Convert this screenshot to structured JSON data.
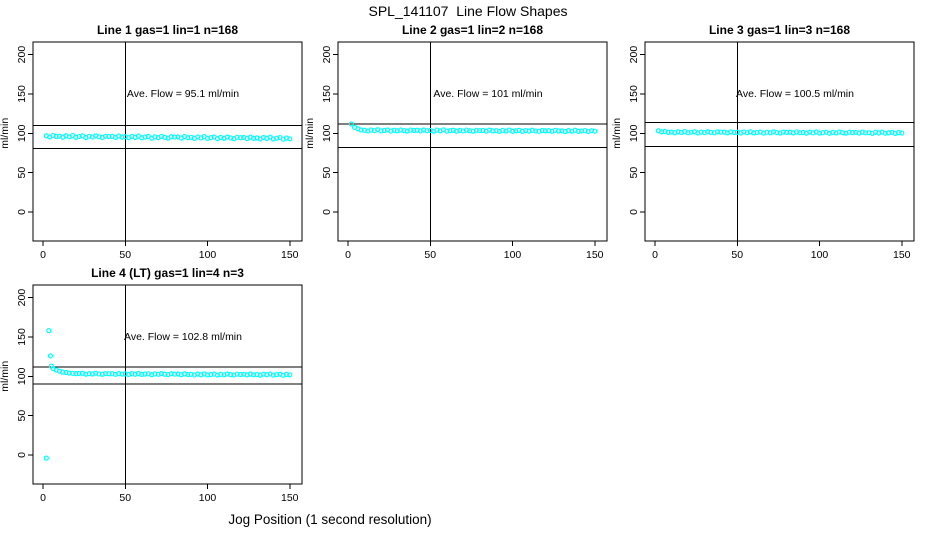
{
  "figure": {
    "title": "SPL_141107  Line Flow Shapes",
    "xlabel": "Jog Position (1 second resolution)",
    "background": "#ffffff",
    "point_color": "#00ffff",
    "axis_color": "#000000"
  },
  "chart_data": [
    {
      "type": "scatter",
      "title": "Line 1 gas=1 lin=1 n=168",
      "annotation": "Ave. Flow =  95.1  ml/min",
      "ave_flow": 95.1,
      "n": 168,
      "ylabel": "ml/min",
      "xticks": [
        0,
        50,
        100,
        150
      ],
      "yticks": [
        0,
        50,
        100,
        150,
        200
      ],
      "vline_x": 50,
      "ref_lines": [
        110,
        80.5
      ],
      "x_start": 2,
      "x_step": 2,
      "y": [
        96.9,
        95.4,
        97.3,
        95.9,
        96.3,
        95.0,
        96.9,
        95.5,
        97.3,
        95.0,
        96.0,
        96.8,
        94.6,
        96.2,
        95.2,
        96.7,
        95.5,
        94.7,
        96.3,
        95.9,
        96.1,
        94.7,
        96.6,
        95.1,
        95.6,
        94.3,
        96.1,
        94.8,
        96.6,
        94.3,
        95.3,
        96.1,
        93.9,
        95.5,
        94.4,
        96.0,
        94.8,
        93.9,
        95.6,
        95.2,
        95.4,
        94.0,
        95.9,
        94.4,
        94.9,
        93.5,
        95.4,
        94.1,
        95.8,
        93.6,
        94.6,
        95.3,
        93.2,
        94.8,
        93.7,
        95.3,
        94.1,
        93.2,
        94.9,
        94.4,
        94.7,
        93.3,
        95.1,
        93.7,
        94.2,
        92.8,
        94.7,
        93.4,
        95.1,
        92.9,
        93.8,
        94.6,
        92.5,
        94.0,
        93.0
      ],
      "extra_points": []
    },
    {
      "type": "scatter",
      "title": "Line 2 gas=1 lin=2 n=168",
      "annotation": "Ave. Flow =  101  ml/min",
      "ave_flow": 101,
      "n": 168,
      "ylabel": "ml/min",
      "xticks": [
        0,
        50,
        100,
        150
      ],
      "yticks": [
        0,
        50,
        100,
        150,
        200
      ],
      "vline_x": 50,
      "ref_lines": [
        112,
        82
      ],
      "x_start": 2,
      "x_step": 2,
      "y": [
        111.8,
        107.5,
        105.6,
        104.2,
        103.9,
        103.0,
        104.2,
        103.3,
        104.6,
        103.1,
        103.7,
        104.3,
        102.8,
        103.9,
        103.2,
        104.3,
        103.4,
        102.9,
        104.1,
        103.7,
        103.9,
        103.0,
        104.2,
        103.3,
        103.6,
        102.7,
        104.0,
        103.1,
        104.4,
        102.8,
        103.4,
        103.9,
        102.6,
        103.7,
        103.0,
        104.1,
        103.2,
        102.7,
        103.8,
        103.5,
        103.6,
        102.8,
        104.0,
        103.1,
        103.4,
        102.5,
        103.8,
        102.9,
        104.1,
        102.6,
        103.2,
        103.7,
        102.4,
        103.5,
        102.8,
        103.9,
        103.0,
        102.5,
        103.6,
        103.2,
        103.4,
        102.6,
        103.8,
        102.9,
        103.1,
        102.3,
        103.6,
        102.7,
        103.9,
        102.4,
        103.0,
        103.5,
        102.2,
        103.3,
        102.7
      ],
      "extra_points": []
    },
    {
      "type": "scatter",
      "title": "Line 3 gas=1 lin=3 n=168",
      "annotation": "Ave. Flow =  100.5  ml/min",
      "ave_flow": 100.5,
      "n": 168,
      "ylabel": "ml/min",
      "xticks": [
        0,
        50,
        100,
        150
      ],
      "yticks": [
        0,
        50,
        100,
        150,
        200
      ],
      "vline_x": 50,
      "ref_lines": [
        113.5,
        83
      ],
      "x_start": 2,
      "x_step": 2,
      "y": [
        103.2,
        102.0,
        102.4,
        101.2,
        101.6,
        100.7,
        102.0,
        101.1,
        102.3,
        100.8,
        101.4,
        102.0,
        100.5,
        101.6,
        100.9,
        102.0,
        101.1,
        100.6,
        101.8,
        101.4,
        101.5,
        100.7,
        101.9,
        101.0,
        101.3,
        100.4,
        101.7,
        100.8,
        102.0,
        100.5,
        101.1,
        101.6,
        100.3,
        101.4,
        100.7,
        101.8,
        100.9,
        100.4,
        101.5,
        101.2,
        101.3,
        100.5,
        101.7,
        100.8,
        101.1,
        100.2,
        101.5,
        100.6,
        101.8,
        100.3,
        100.9,
        101.4,
        100.1,
        101.2,
        100.5,
        101.6,
        100.7,
        100.2,
        101.3,
        100.9,
        101.1,
        100.3,
        101.5,
        100.6,
        100.8,
        100.0,
        101.3,
        100.4,
        101.6,
        100.1,
        100.7,
        101.2,
        99.9,
        101.0,
        100.4
      ],
      "extra_points": []
    },
    {
      "type": "scatter",
      "title": "Line 4 (LT) gas=1 lin=4 n=3",
      "annotation": "Ave. Flow =  102.8  ml/min",
      "ave_flow": 102.8,
      "n": 3,
      "ylabel": "ml/min",
      "xticks": [
        0,
        50,
        100,
        150
      ],
      "yticks": [
        0,
        50,
        100,
        150,
        200
      ],
      "vline_x": 50,
      "ref_lines": [
        112,
        90.5
      ],
      "x_start": 6,
      "x_step": 2,
      "y": [
        110.0,
        108.0,
        106.5,
        105.3,
        104.8,
        104.1,
        103.8,
        103.4,
        103.6,
        103.9,
        102.7,
        103.5,
        102.9,
        103.8,
        103.0,
        102.6,
        103.5,
        103.2,
        103.3,
        102.5,
        103.6,
        102.8,
        103.1,
        102.3,
        103.4,
        102.6,
        103.7,
        102.4,
        102.9,
        103.3,
        102.1,
        103.1,
        102.5,
        103.4,
        102.6,
        102.2,
        103.2,
        102.8,
        102.9,
        102.1,
        103.2,
        102.3,
        102.5,
        101.7,
        102.9,
        102.0,
        103.1,
        101.8,
        102.3,
        102.8,
        101.6,
        102.5,
        101.9,
        102.9,
        102.1,
        101.7,
        102.7,
        102.3,
        102.5,
        101.8,
        102.9,
        102.0,
        102.2,
        101.5,
        102.7,
        101.9,
        103.0,
        101.6,
        102.2,
        102.6,
        101.4,
        102.4,
        101.9
      ],
      "extra_points": [
        [
          2,
          -4
        ],
        [
          3.5,
          158
        ],
        [
          4.5,
          126
        ],
        [
          5,
          113
        ]
      ]
    }
  ]
}
